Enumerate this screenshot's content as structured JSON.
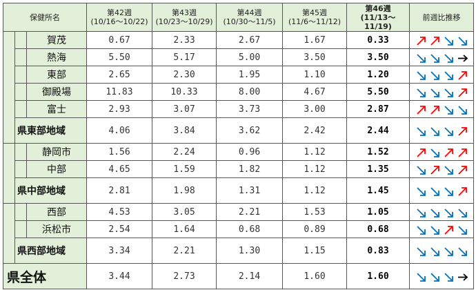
{
  "header": {
    "office_label": "保健所名",
    "trend_label": "前週比推移",
    "weeks": [
      {
        "label": "第42週",
        "range": "(10/16～10/22)"
      },
      {
        "label": "第43週",
        "range": "(10/23～10/29)"
      },
      {
        "label": "第44週",
        "range": "(10/30～11/5)"
      },
      {
        "label": "第45週",
        "range": "(11/6～11/12)"
      },
      {
        "label": "第46週",
        "range": "(11/13～11/19)"
      }
    ]
  },
  "rows": [
    {
      "name": "賀茂",
      "values": [
        "0.67",
        "2.33",
        "2.67",
        "1.67",
        "0.33"
      ],
      "trend": [
        "up",
        "up",
        "down",
        "down"
      ]
    },
    {
      "name": "熱海",
      "values": [
        "5.50",
        "5.17",
        "5.00",
        "3.50",
        "3.50"
      ],
      "trend": [
        "down",
        "down",
        "down",
        "flat"
      ]
    },
    {
      "name": "東部",
      "values": [
        "2.65",
        "2.30",
        "1.95",
        "1.10",
        "1.20"
      ],
      "trend": [
        "down",
        "down",
        "down",
        "up"
      ]
    },
    {
      "name": "御殿場",
      "values": [
        "11.83",
        "10.33",
        "8.00",
        "4.67",
        "5.50"
      ],
      "trend": [
        "down",
        "down",
        "down",
        "up"
      ]
    },
    {
      "name": "富士",
      "values": [
        "2.93",
        "3.07",
        "3.73",
        "3.00",
        "2.87"
      ],
      "trend": [
        "up",
        "up",
        "down",
        "down"
      ]
    },
    {
      "name": "県東部地域",
      "values": [
        "4.06",
        "3.84",
        "3.62",
        "2.42",
        "2.44"
      ],
      "trend": [
        "down",
        "down",
        "down",
        "up"
      ]
    },
    {
      "name": "静岡市",
      "values": [
        "1.56",
        "2.24",
        "0.96",
        "1.12",
        "1.52"
      ],
      "trend": [
        "up",
        "down",
        "up",
        "up"
      ]
    },
    {
      "name": "中部",
      "values": [
        "4.65",
        "1.59",
        "1.82",
        "1.12",
        "1.35"
      ],
      "trend": [
        "down",
        "up",
        "down",
        "up"
      ]
    },
    {
      "name": "県中部地域",
      "values": [
        "2.81",
        "1.98",
        "1.31",
        "1.12",
        "1.45"
      ],
      "trend": [
        "down",
        "down",
        "down",
        "up"
      ]
    },
    {
      "name": "西部",
      "values": [
        "4.53",
        "3.05",
        "2.21",
        "1.53",
        "1.05"
      ],
      "trend": [
        "down",
        "down",
        "down",
        "down"
      ]
    },
    {
      "name": "浜松市",
      "values": [
        "2.54",
        "1.64",
        "0.68",
        "0.89",
        "0.68"
      ],
      "trend": [
        "down",
        "down",
        "up",
        "down"
      ]
    },
    {
      "name": "県西部地域",
      "values": [
        "3.34",
        "2.21",
        "1.30",
        "1.15",
        "0.83"
      ],
      "trend": [
        "down",
        "down",
        "down",
        "down"
      ]
    },
    {
      "name": "県全体",
      "values": [
        "3.44",
        "2.73",
        "2.14",
        "1.60",
        "1.60"
      ],
      "trend": [
        "down",
        "down",
        "down",
        "flat"
      ]
    }
  ],
  "colors": {
    "up": "#ff0000",
    "down": "#0070c0",
    "flat": "#000000",
    "header_bg": "#e2efd9"
  }
}
